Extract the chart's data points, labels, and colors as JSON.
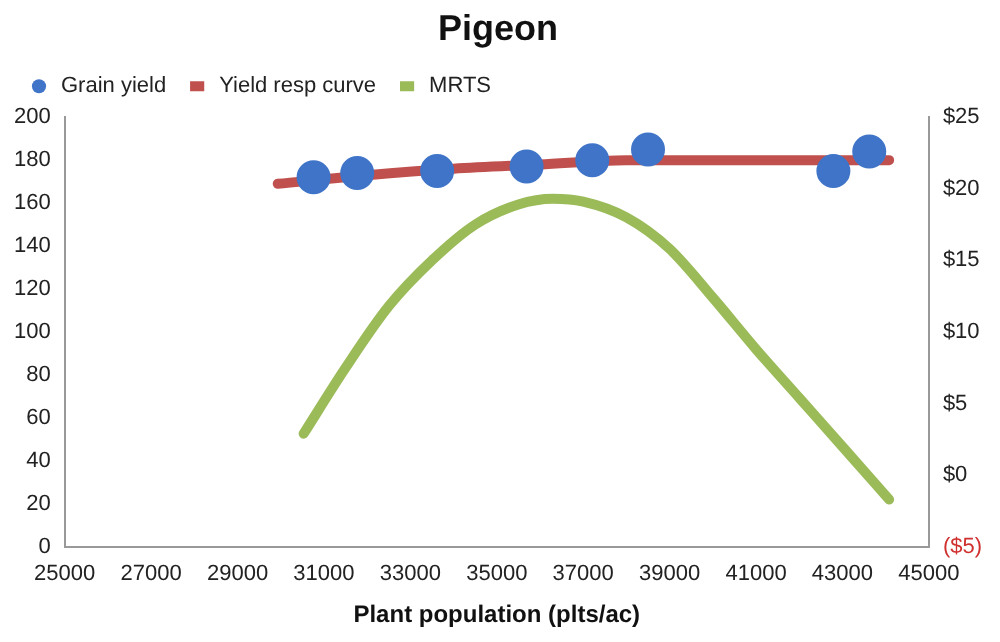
{
  "chart_data": {
    "type": "line",
    "title": "Pigeon",
    "xlabel": "Plant population (plts/ac)",
    "legend": "top left",
    "grid": false,
    "xlim": [
      25000,
      45000
    ],
    "xticks": [
      25000,
      27000,
      29000,
      31000,
      33000,
      35000,
      37000,
      39000,
      41000,
      43000,
      45000
    ],
    "ylim": [
      0,
      200
    ],
    "yticks": [
      0,
      20,
      40,
      60,
      80,
      100,
      120,
      140,
      160,
      180,
      200
    ],
    "y2lim": [
      -5,
      25
    ],
    "y2ticks": [
      {
        "value": -5,
        "label": "($5)"
      },
      {
        "value": 0,
        "label": "$0"
      },
      {
        "value": 5,
        "label": "$5"
      },
      {
        "value": 10,
        "label": "$10"
      },
      {
        "value": 15,
        "label": "$15"
      },
      {
        "value": 20,
        "label": "$20"
      },
      {
        "value": 25,
        "label": "$25"
      }
    ],
    "series": [
      {
        "name": "Grain yield",
        "type": "scatter",
        "marker": "circle",
        "color": "#3f74c8",
        "x": [
          30760,
          31770,
          33620,
          35690,
          37210,
          38500,
          42790,
          43620
        ],
        "values": [
          172,
          174,
          175,
          177,
          180,
          185,
          175,
          184
        ]
      },
      {
        "name": "Yield resp curve",
        "type": "line",
        "marker": "none",
        "color": "#c0504d",
        "x": [
          29930,
          32000,
          34000,
          36000,
          38000,
          40000,
          42000,
          44080
        ],
        "values": [
          169,
          173,
          176,
          178,
          180,
          180,
          180,
          180
        ]
      },
      {
        "name": "MRTS",
        "type": "line",
        "marker": "none",
        "axis": "y2",
        "color": "#9bbb59",
        "x": [
          30530,
          31500,
          32500,
          33500,
          34500,
          35500,
          36300,
          37000,
          38000,
          39000,
          40000,
          41000,
          42000,
          43000,
          44080
        ],
        "values": [
          2.9,
          7.5,
          11.8,
          15,
          17.5,
          18.9,
          19.3,
          19.1,
          18,
          15.8,
          12.4,
          8.8,
          5.4,
          2,
          -1.7
        ]
      }
    ]
  }
}
